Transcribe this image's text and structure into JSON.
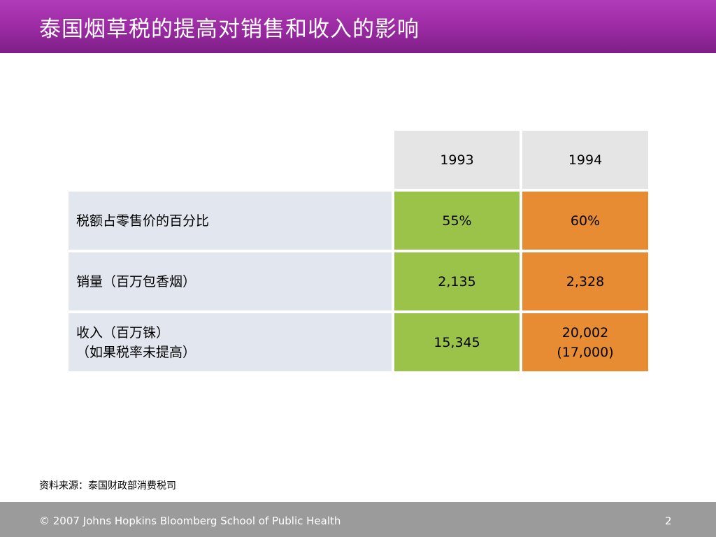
{
  "header": {
    "title": "泰国烟草税的提高对销售和收入的影响"
  },
  "table": {
    "columns": [
      "1993",
      "1994"
    ],
    "rows": [
      {
        "label_lines": [
          "税额占零售价的百分比"
        ],
        "values": [
          [
            "55%"
          ],
          [
            "60%"
          ]
        ]
      },
      {
        "label_lines": [
          "销量（百万包香烟）"
        ],
        "values": [
          [
            "2,135"
          ],
          [
            "2,328"
          ]
        ]
      },
      {
        "label_lines": [
          "收入（百万铢）",
          "（如果税率未提高）"
        ],
        "values": [
          [
            "15,345"
          ],
          [
            "20,002",
            "(17,000)"
          ]
        ]
      }
    ]
  },
  "source": "资料来源：泰国财政部消费税司",
  "footer": {
    "copyright": "© 2007 Johns Hopkins Bloomberg School of Public Health",
    "page_number": "2"
  },
  "colors": {
    "title_bar": "#9a2aa2",
    "col_1993": "#9bc34a",
    "col_1994": "#e88c33",
    "label_bg": "#e2e7ef",
    "header_bg": "#e5e5e5",
    "footer_bg": "#9b9b9b"
  }
}
